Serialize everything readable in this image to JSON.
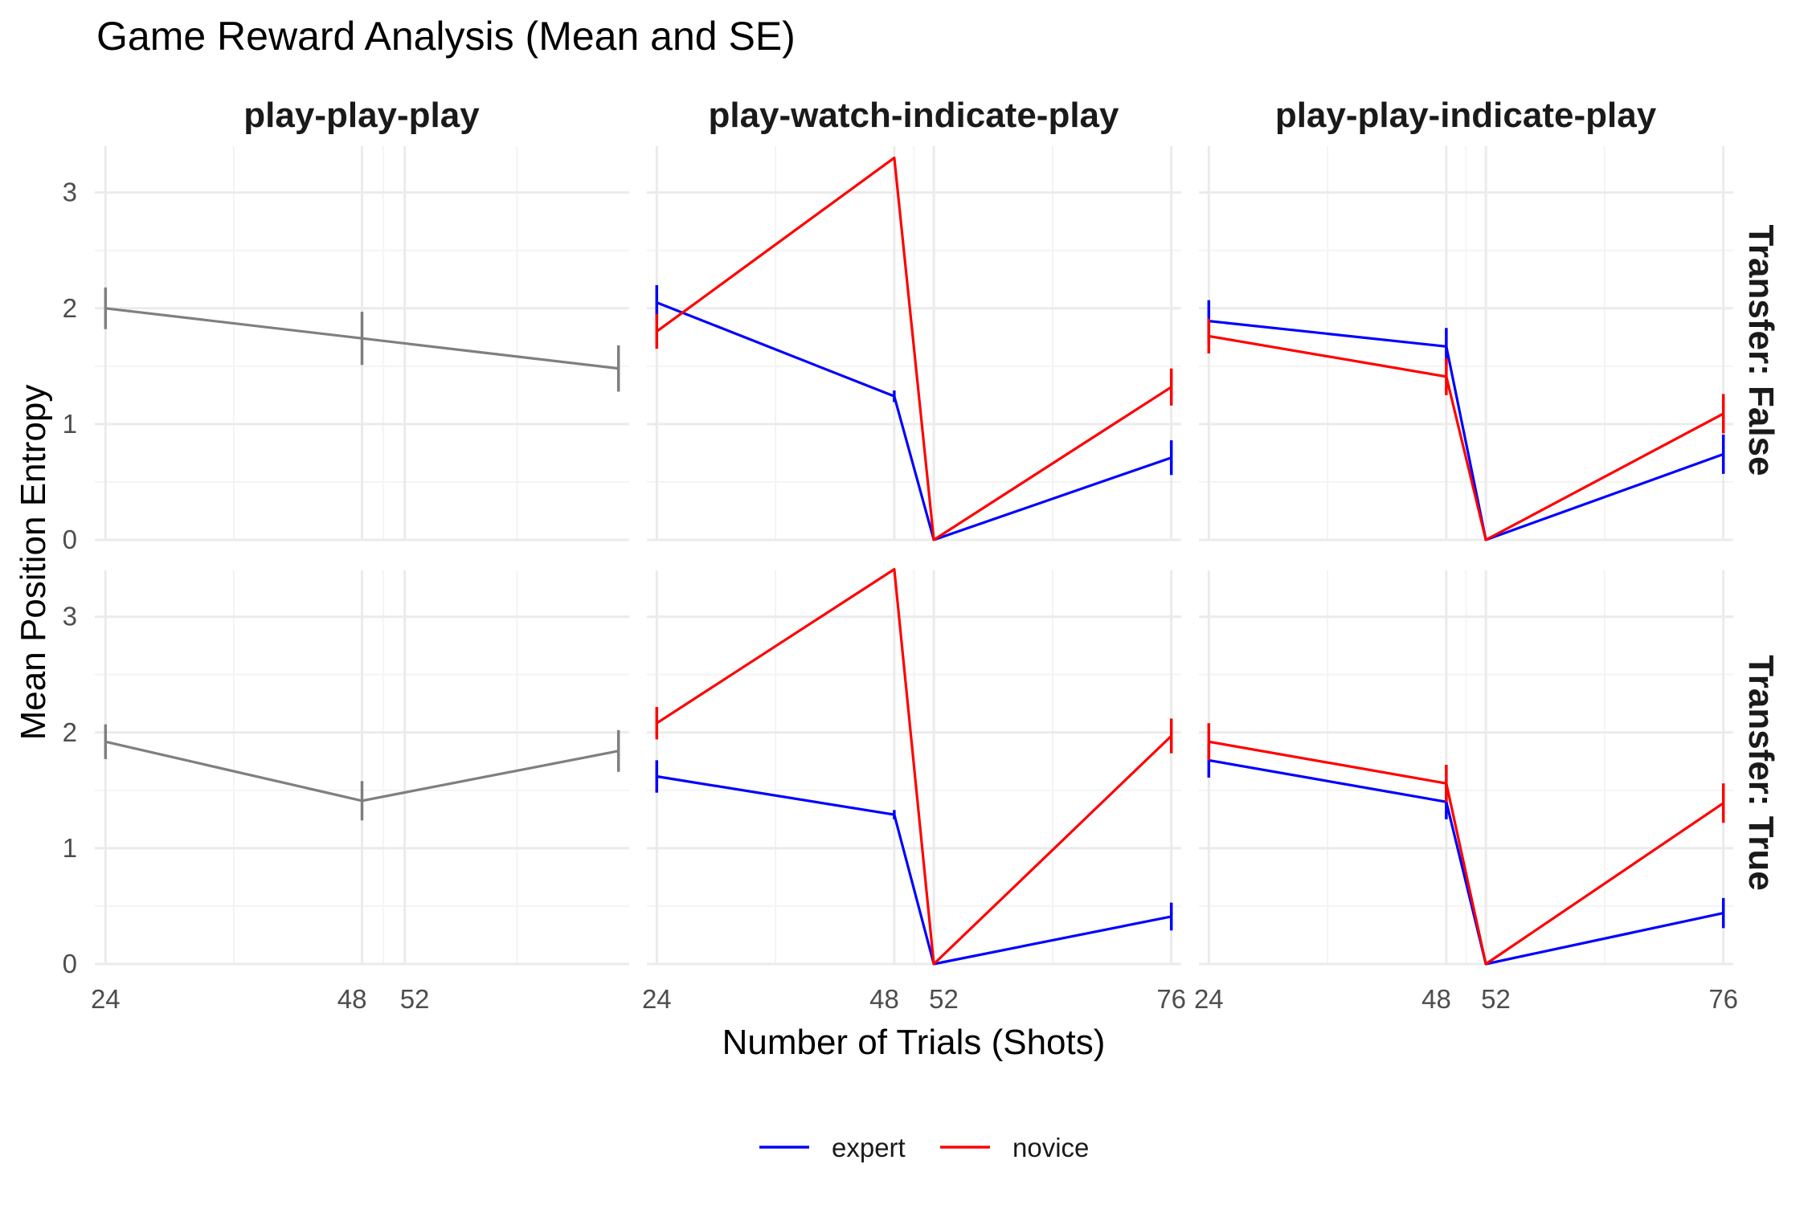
{
  "chart_data": {
    "type": "line",
    "title": "Game Reward Analysis (Mean and SE)",
    "xlabel": "Number of Trials (Shots)",
    "ylabel": "Mean Position Entropy",
    "facet_columns": [
      "play-play-play",
      "play-watch-indicate-play",
      "play-play-indicate-play"
    ],
    "facet_rows": [
      "Transfer: False",
      "Transfer: True"
    ],
    "y_ticks": [
      0,
      1,
      2,
      3
    ],
    "ylim": [
      0,
      3.4
    ],
    "grid": true,
    "legend": {
      "position": "bottom",
      "entries": [
        {
          "name": "expert",
          "color": "#0000ff"
        },
        {
          "name": "novice",
          "color": "#ff0000"
        }
      ]
    },
    "panels": [
      {
        "column": "play-play-play",
        "row": "Transfer: False",
        "x_ticks": [
          24,
          48,
          52
        ],
        "xlim": [
          23,
          73
        ],
        "series": [
          {
            "color": "#7f7f7f",
            "points": [
              {
                "x": 24,
                "y": 2.0,
                "se": 0.18
              },
              {
                "x": 48,
                "y": 1.74,
                "se": 0.23
              },
              {
                "x": 72,
                "y": 1.48,
                "se": 0.2
              }
            ]
          }
        ]
      },
      {
        "column": "play-watch-indicate-play",
        "row": "Transfer: False",
        "x_ticks": [
          24,
          48,
          52,
          76
        ],
        "xlim": [
          23,
          77
        ],
        "series": [
          {
            "name": "expert",
            "color": "#0000ff",
            "points": [
              {
                "x": 24,
                "y": 2.05,
                "se": 0.15
              },
              {
                "x": 48,
                "y": 1.24,
                "se": 0.05
              },
              {
                "x": 52,
                "y": 0.0,
                "se": 0.0
              },
              {
                "x": 76,
                "y": 0.71,
                "se": 0.15
              }
            ]
          },
          {
            "name": "novice",
            "color": "#ff0000",
            "points": [
              {
                "x": 24,
                "y": 1.8,
                "se": 0.15
              },
              {
                "x": 48,
                "y": 3.3,
                "se": 0.0
              },
              {
                "x": 52,
                "y": 0.0,
                "se": 0.0
              },
              {
                "x": 76,
                "y": 1.32,
                "se": 0.16
              }
            ]
          }
        ]
      },
      {
        "column": "play-play-indicate-play",
        "row": "Transfer: False",
        "x_ticks": [
          24,
          48,
          52,
          76
        ],
        "xlim": [
          23,
          77
        ],
        "series": [
          {
            "name": "expert",
            "color": "#0000ff",
            "points": [
              {
                "x": 24,
                "y": 1.89,
                "se": 0.18
              },
              {
                "x": 48,
                "y": 1.67,
                "se": 0.16
              },
              {
                "x": 52,
                "y": 0.0,
                "se": 0.0
              },
              {
                "x": 76,
                "y": 0.74,
                "se": 0.17
              }
            ]
          },
          {
            "name": "novice",
            "color": "#ff0000",
            "points": [
              {
                "x": 24,
                "y": 1.76,
                "se": 0.15
              },
              {
                "x": 48,
                "y": 1.41,
                "se": 0.16
              },
              {
                "x": 52,
                "y": 0.0,
                "se": 0.0
              },
              {
                "x": 76,
                "y": 1.09,
                "se": 0.17
              }
            ]
          }
        ]
      },
      {
        "column": "play-play-play",
        "row": "Transfer: True",
        "x_ticks": [
          24,
          48,
          52
        ],
        "xlim": [
          23,
          73
        ],
        "series": [
          {
            "color": "#7f7f7f",
            "points": [
              {
                "x": 24,
                "y": 1.92,
                "se": 0.15
              },
              {
                "x": 48,
                "y": 1.41,
                "se": 0.17
              },
              {
                "x": 72,
                "y": 1.84,
                "se": 0.18
              }
            ]
          }
        ]
      },
      {
        "column": "play-watch-indicate-play",
        "row": "Transfer: True",
        "x_ticks": [
          24,
          48,
          52,
          76
        ],
        "xlim": [
          23,
          77
        ],
        "series": [
          {
            "name": "expert",
            "color": "#0000ff",
            "points": [
              {
                "x": 24,
                "y": 1.62,
                "se": 0.14
              },
              {
                "x": 48,
                "y": 1.29,
                "se": 0.04
              },
              {
                "x": 52,
                "y": 0.0,
                "se": 0.0
              },
              {
                "x": 76,
                "y": 0.41,
                "se": 0.12
              }
            ]
          },
          {
            "name": "novice",
            "color": "#ff0000",
            "points": [
              {
                "x": 24,
                "y": 2.08,
                "se": 0.14
              },
              {
                "x": 48,
                "y": 3.41,
                "se": 0.0
              },
              {
                "x": 52,
                "y": 0.0,
                "se": 0.0
              },
              {
                "x": 76,
                "y": 1.97,
                "se": 0.15
              }
            ]
          }
        ]
      },
      {
        "column": "play-play-indicate-play",
        "row": "Transfer: True",
        "x_ticks": [
          24,
          48,
          52,
          76
        ],
        "xlim": [
          23,
          77
        ],
        "series": [
          {
            "name": "expert",
            "color": "#0000ff",
            "points": [
              {
                "x": 24,
                "y": 1.76,
                "se": 0.15
              },
              {
                "x": 48,
                "y": 1.4,
                "se": 0.15
              },
              {
                "x": 52,
                "y": 0.0,
                "se": 0.0
              },
              {
                "x": 76,
                "y": 0.44,
                "se": 0.13
              }
            ]
          },
          {
            "name": "novice",
            "color": "#ff0000",
            "points": [
              {
                "x": 24,
                "y": 1.92,
                "se": 0.16
              },
              {
                "x": 48,
                "y": 1.56,
                "se": 0.16
              },
              {
                "x": 52,
                "y": 0.0,
                "se": 0.0
              },
              {
                "x": 76,
                "y": 1.39,
                "se": 0.17
              }
            ]
          }
        ]
      }
    ]
  }
}
